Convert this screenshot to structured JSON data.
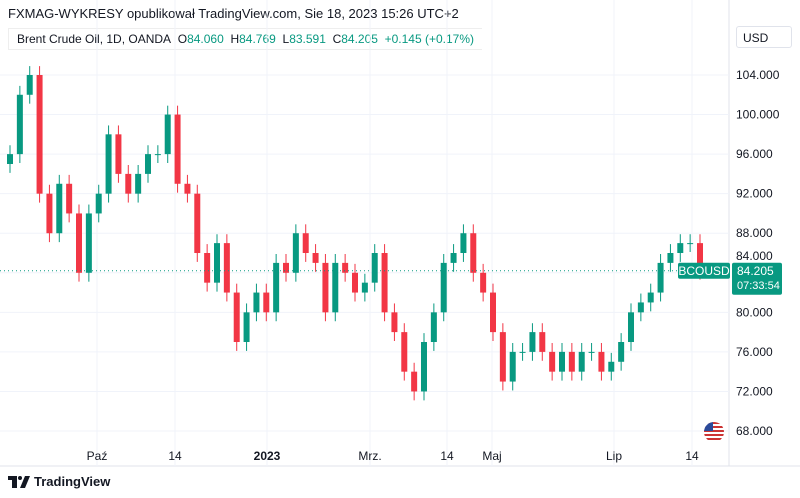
{
  "header": {
    "published": "FXMAG-WYKRESY opublikował TradingView.com, Sie 18, 2023 15:26 UTC+2",
    "symbol": "Brent Crude Oil, 1D, OANDA",
    "o_label": "O",
    "o": "84.060",
    "h_label": "H",
    "h": "84.769",
    "l_label": "L",
    "l": "83.591",
    "c_label": "C",
    "c": "84.205",
    "change": "+0.145 (+0.17%)",
    "currency": "USD"
  },
  "footer": {
    "brand": "TradingView"
  },
  "colors": {
    "up": "#089981",
    "down": "#f23645",
    "grid": "#f0f3fa"
  },
  "chart_data": {
    "type": "candlestick",
    "symbol_tag": "BCOUSD",
    "last_price": "84.205",
    "countdown": "07:33:54",
    "y_ticks": [
      "104.000",
      "100.000",
      "96.000",
      "92.000",
      "88.000",
      "84.000",
      "80.000",
      "76.000",
      "72.000",
      "68.000"
    ],
    "ylim": [
      66,
      107
    ],
    "x_ticks": [
      "Paź",
      "14",
      "2023",
      "Mrz.",
      "14",
      "Maj",
      "Lip",
      "14"
    ],
    "closes": [
      96,
      102,
      104,
      92,
      88,
      93,
      90,
      84,
      90,
      92,
      98,
      94,
      92,
      94,
      96,
      96,
      100,
      93,
      92,
      86,
      83,
      87,
      82,
      77,
      80,
      82,
      80,
      85,
      84,
      88,
      86,
      85,
      80,
      85,
      84,
      82,
      83,
      86,
      80,
      78,
      74,
      72,
      77,
      80,
      85,
      86,
      88,
      84,
      82,
      78,
      73,
      76,
      76,
      78,
      76,
      74,
      76,
      74,
      76,
      76,
      74,
      75,
      77,
      80,
      81,
      82,
      85,
      86,
      87,
      87,
      84.205
    ]
  }
}
